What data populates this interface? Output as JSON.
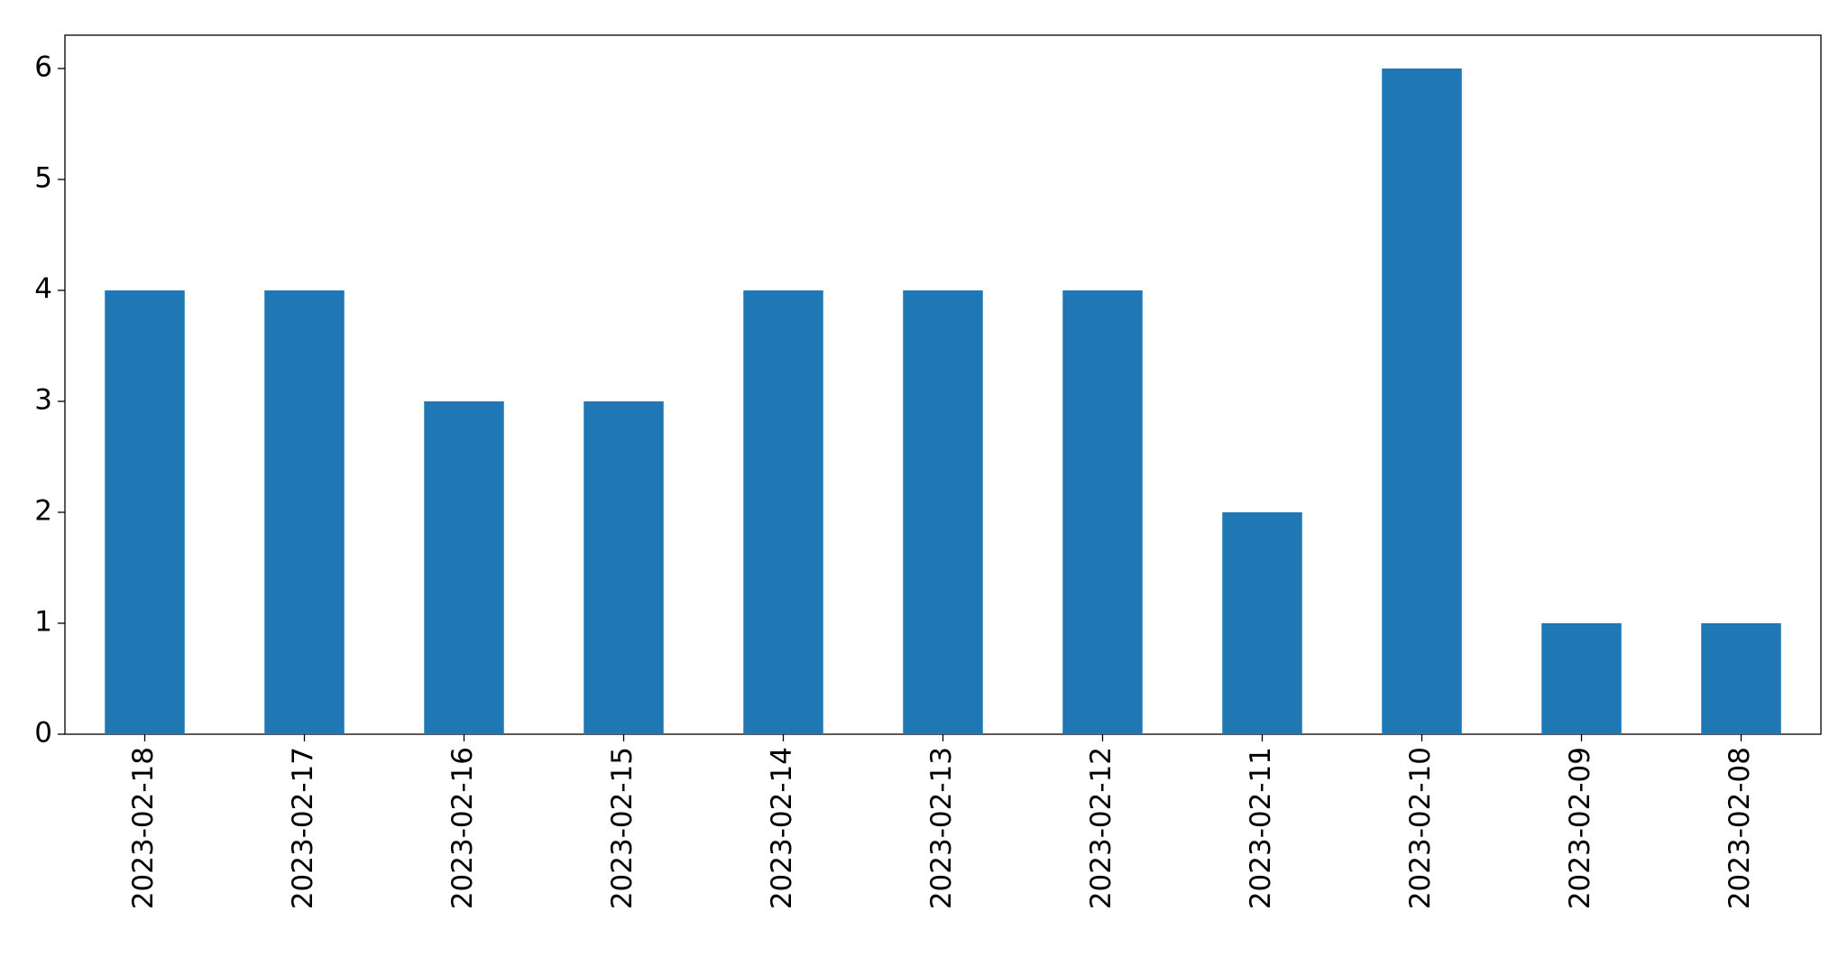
{
  "chart_data": {
    "type": "bar",
    "categories": [
      "2023-02-18",
      "2023-02-17",
      "2023-02-16",
      "2023-02-15",
      "2023-02-14",
      "2023-02-13",
      "2023-02-12",
      "2023-02-11",
      "2023-02-10",
      "2023-02-09",
      "2023-02-08"
    ],
    "values": [
      4,
      4,
      3,
      3,
      4,
      4,
      4,
      2,
      6,
      1,
      1
    ],
    "color": "#1f77b4",
    "ylim": [
      0,
      6.3
    ],
    "yticks": [
      0,
      1,
      2,
      3,
      4,
      5,
      6
    ],
    "grid": false
  }
}
